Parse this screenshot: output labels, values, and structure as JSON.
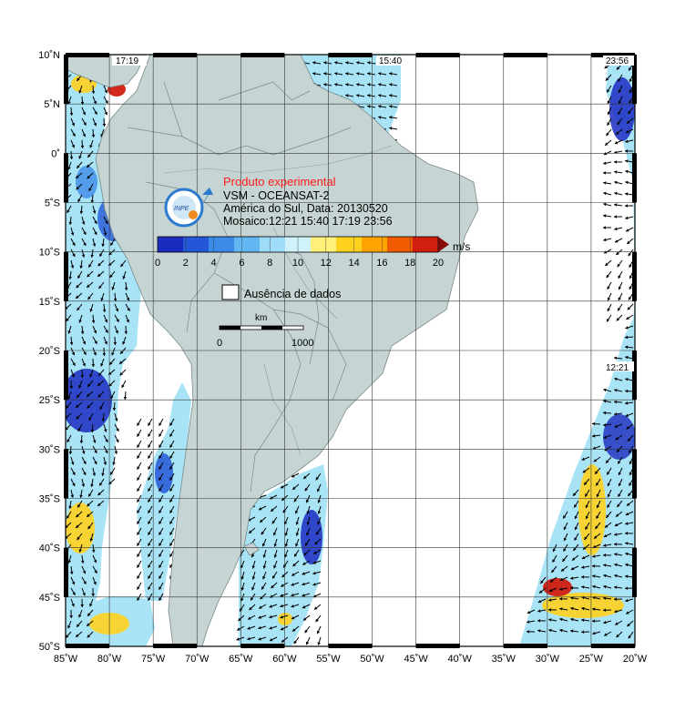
{
  "header": {
    "experimental": "Produto experimental",
    "product": "VSM - OCEANSAT-2",
    "region_date": "América do Sul, Data: 20130520",
    "mosaic": "Mosaico:12:21 15:40 17:19 23:56"
  },
  "pass_times": [
    "17:19",
    "15:40",
    "23:56",
    "12:21"
  ],
  "colorbar": {
    "unit": "m/s",
    "ticks": [
      "0",
      "2",
      "4",
      "6",
      "8",
      "10",
      "12",
      "14",
      "16",
      "18",
      "20"
    ],
    "colors": [
      "#1a2bbf",
      "#2457d8",
      "#3d8be8",
      "#62b6f2",
      "#9fdcf8",
      "#cff2fb",
      "#fff07a",
      "#ffd21e",
      "#ffa300",
      "#f05a00",
      "#d01e10",
      "#8a0a0a"
    ]
  },
  "legend": {
    "no_data": "Ausência de dados"
  },
  "scale_bar": {
    "unit": "km",
    "start": "0",
    "end": "1000"
  },
  "lat_labels": [
    "10˚N",
    "5˚N",
    "0˚",
    "5˚S",
    "10˚S",
    "15˚S",
    "20˚S",
    "25˚S",
    "30˚S",
    "35˚S",
    "40˚S",
    "45˚S",
    "50˚S"
  ],
  "lon_labels": [
    "85˚W",
    "80˚W",
    "75˚W",
    "70˚W",
    "65˚W",
    "60˚W",
    "55˚W",
    "50˚W",
    "45˚W",
    "40˚W",
    "35˚W",
    "30˚W",
    "25˚W",
    "20˚W"
  ],
  "colors": {
    "ocean_wind": "#a8e4f6",
    "land": "#c6d5d3",
    "border": "#7a8a8a",
    "frame": "#000000"
  },
  "logo_text": "INPE"
}
